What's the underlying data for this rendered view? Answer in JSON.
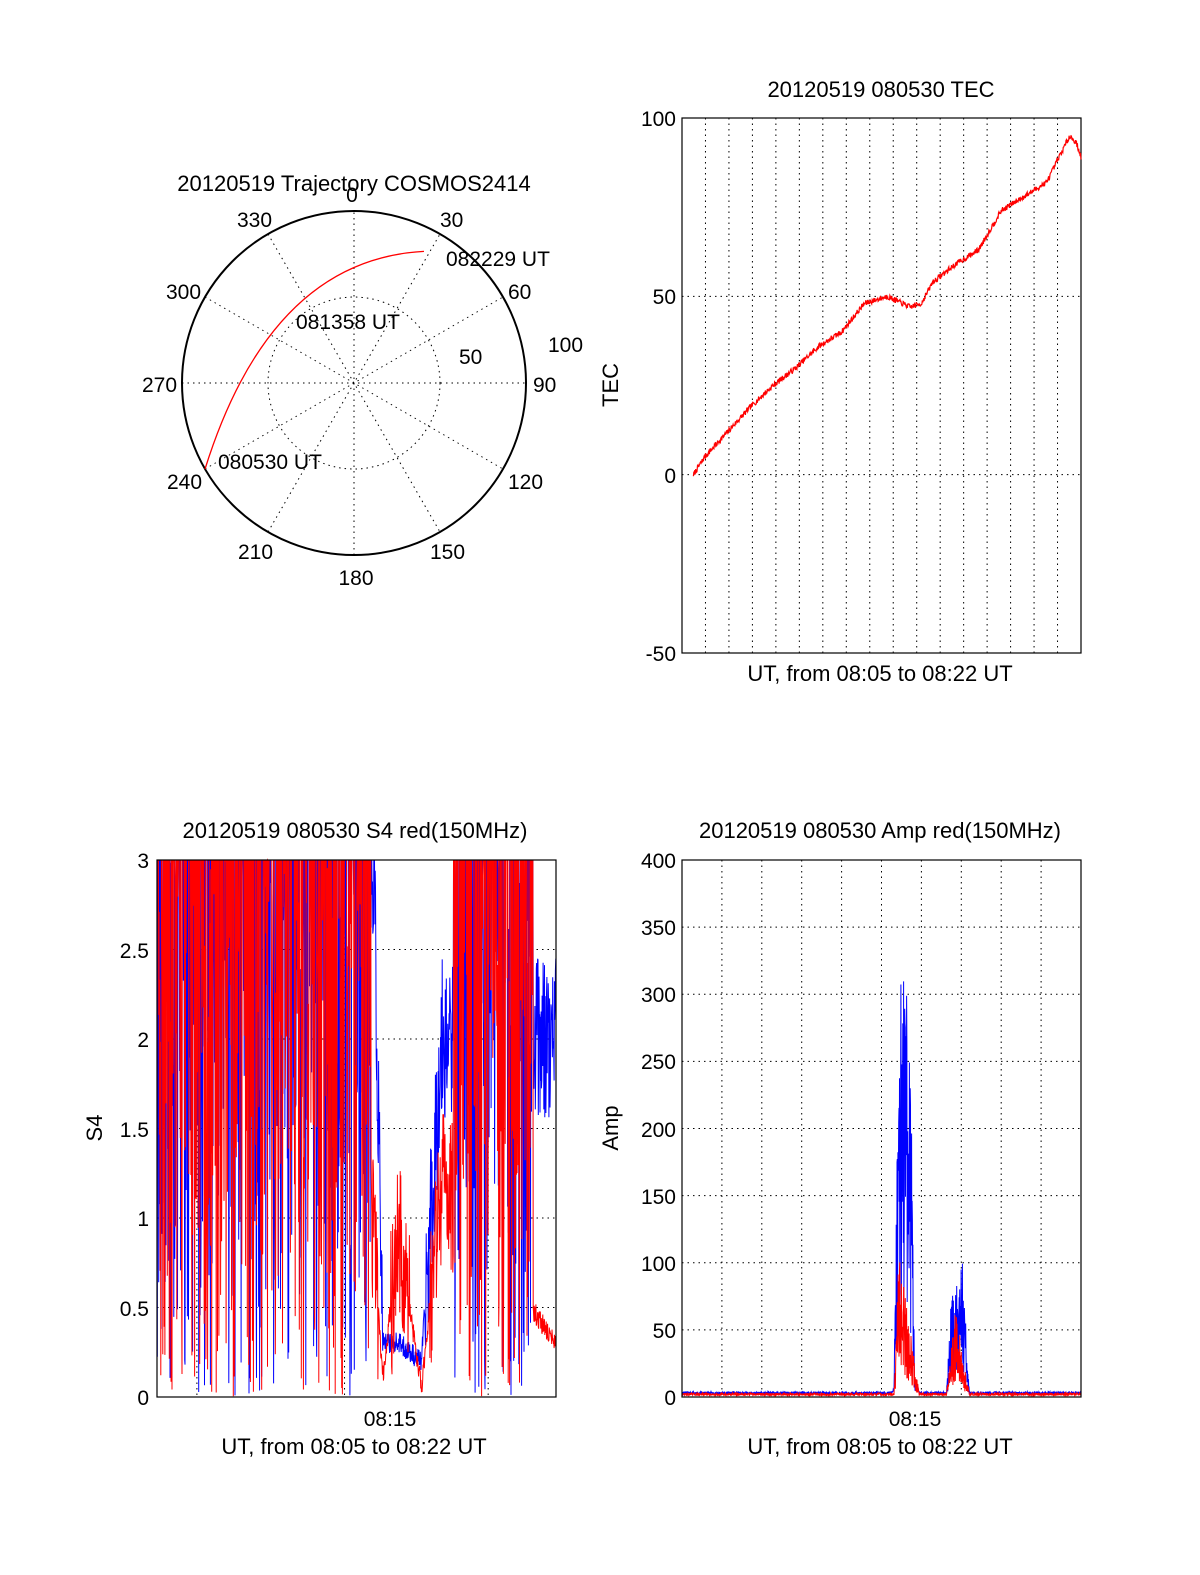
{
  "colors": {
    "red": "#ff0000",
    "blue": "#0000ff",
    "axis": "#000000"
  },
  "chart_data": [
    {
      "id": "polar",
      "type": "scatter",
      "title": "20120519 Trajectory COSMOS2414",
      "azimuth_labels": [
        "0",
        "30",
        "60",
        "90",
        "120",
        "150",
        "180",
        "210",
        "240",
        "270",
        "300",
        "330"
      ],
      "radius_labels": [
        "50",
        "100"
      ],
      "trajectory": {
        "start": {
          "time": "080530 UT",
          "azimuth_deg": 240,
          "elevation_deg": 0
        },
        "middle": {
          "time": "081358 UT",
          "azimuth_deg": 320,
          "elevation_deg": 40
        },
        "end": {
          "time": "082229 UT",
          "azimuth_deg": 28,
          "elevation_deg": 12
        }
      }
    },
    {
      "id": "tec",
      "type": "line",
      "title": "20120519 080530 TEC",
      "ylabel": "TEC",
      "xlabel": "UT, from 08:05 to 08:22 UT",
      "ylim": [
        -50,
        100
      ],
      "yticks": [
        "100",
        "50",
        "0",
        "-50"
      ],
      "xlim_min": [
        5,
        22.5
      ],
      "x_minutes": [
        5.5,
        6,
        7,
        8,
        9,
        10,
        11,
        12,
        12.5,
        13,
        14,
        15,
        15.5,
        16,
        17,
        18,
        19,
        20,
        21,
        22,
        22.3,
        22.5
      ],
      "values": [
        0,
        5,
        12,
        19,
        25,
        30,
        36,
        40,
        44,
        48,
        50,
        47,
        48,
        54,
        59,
        63,
        74,
        78,
        82,
        95,
        93,
        89
      ]
    },
    {
      "id": "s4",
      "type": "line",
      "title": "20120519 080530 S4 red(150MHz)",
      "ylabel": "S4",
      "xlabel": "UT, from 08:05 to 08:22 UT",
      "xtick": "08:15",
      "ylim": [
        0,
        3
      ],
      "yticks": [
        "3",
        "2.5",
        "2",
        "1.5",
        "1",
        "0.5",
        "0"
      ],
      "series": [
        {
          "color": "blue",
          "x_minutes": [
            5.0,
            14.5,
            14.9,
            15.6,
            16.6,
            17.5,
            22.5
          ],
          "values": [
            3,
            3,
            0.3,
            0.3,
            0.2,
            2.0,
            2.0
          ]
        },
        {
          "color": "red",
          "x_minutes": [
            5.0,
            13.5,
            14.5,
            14.9,
            15.6,
            16.6,
            17.5,
            22.5
          ],
          "values": [
            3,
            3,
            0.9,
            0.1,
            0.9,
            0.05,
            1.2,
            0.3
          ]
        }
      ]
    },
    {
      "id": "amp",
      "type": "line",
      "title": "20120519 080530 Amp red(150MHz)",
      "ylabel": "Amp",
      "xlabel": "UT, from 08:05 to 08:22 UT",
      "xtick": "08:15",
      "ylim": [
        0,
        400
      ],
      "yticks": [
        "400",
        "350",
        "300",
        "250",
        "200",
        "150",
        "100",
        "50",
        "0"
      ],
      "series": [
        {
          "color": "blue",
          "x_minutes": [
            5.0,
            14.2,
            14.3,
            14.5,
            15.0,
            15.2,
            15.4,
            16.6,
            16.8,
            17.3,
            17.6,
            22.5
          ],
          "values": [
            2,
            2,
            5,
            295,
            270,
            20,
            2,
            2,
            70,
            100,
            2,
            2
          ]
        },
        {
          "color": "red",
          "x_minutes": [
            5.0,
            14.3,
            14.5,
            15.0,
            15.4,
            16.6,
            17.0,
            17.6,
            22.5
          ],
          "values": [
            1,
            1,
            100,
            50,
            1,
            1,
            60,
            1,
            1
          ]
        }
      ]
    }
  ]
}
